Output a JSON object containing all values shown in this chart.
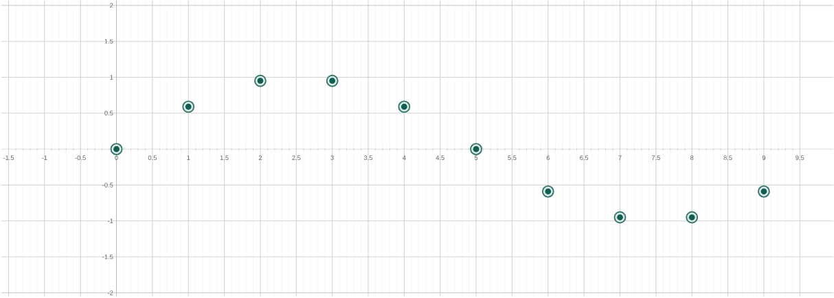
{
  "chart_data": {
    "type": "scatter",
    "x": [
      0,
      1,
      2,
      3,
      4,
      5,
      6,
      7,
      8,
      9
    ],
    "values": [
      0,
      0.59,
      0.95,
      0.95,
      0.59,
      0,
      -0.59,
      -0.95,
      -0.95,
      -0.59
    ],
    "color": "#0f5e52",
    "marker": "circle",
    "grid": true,
    "xlim": [
      -1.6,
      9.97
    ],
    "ylim": [
      -2.05,
      2.07
    ],
    "xticks": [
      -1.5,
      -1,
      -0.5,
      0,
      0.5,
      1,
      1.5,
      2,
      2.5,
      3,
      3.5,
      4,
      4.5,
      5,
      5.5,
      6,
      6.5,
      7,
      7.5,
      8,
      8.5,
      9,
      9.5
    ],
    "yticks": [
      -2,
      -1.5,
      -1,
      -0.5,
      0.5,
      1,
      1.5,
      2
    ]
  }
}
